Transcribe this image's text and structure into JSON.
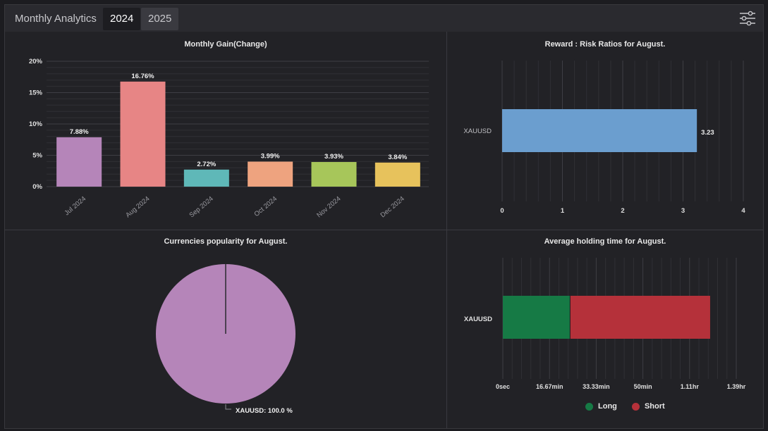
{
  "header": {
    "title": "Monthly Analytics",
    "tabs": [
      {
        "label": "2024",
        "active": true
      },
      {
        "label": "2025",
        "active": false
      }
    ],
    "settings_icon": "sliders-icon"
  },
  "chart_data": [
    {
      "type": "bar",
      "title": "Monthly Gain(Change)",
      "categories": [
        "Jul 2024",
        "Aug 2024",
        "Sep 2024",
        "Oct 2024",
        "Nov 2024",
        "Dec 2024"
      ],
      "values": [
        7.88,
        16.76,
        2.72,
        3.99,
        3.93,
        3.84
      ],
      "value_labels": [
        "7.88%",
        "16.76%",
        "2.72%",
        "3.99%",
        "3.93%",
        "3.84%"
      ],
      "colors": [
        "#b585b9",
        "#e78585",
        "#5fb8b8",
        "#eea37f",
        "#a7c65a",
        "#e7c25c"
      ],
      "ylim": [
        0,
        20
      ],
      "yticks": [
        "0%",
        "5%",
        "10%",
        "15%",
        "20%"
      ],
      "ytick_values": [
        0,
        5,
        10,
        15,
        20
      ],
      "grid": true
    },
    {
      "type": "bar",
      "orientation": "horizontal",
      "title": "Reward : Risk Ratios for August.",
      "categories": [
        "XAUUSD"
      ],
      "values": [
        3.23
      ],
      "value_labels": [
        "3.23"
      ],
      "color": "#6b9ecf",
      "xlim": [
        0,
        4
      ],
      "xticks": [
        "0",
        "1",
        "2",
        "3",
        "4"
      ],
      "xtick_values": [
        0,
        1,
        2,
        3,
        4
      ],
      "grid": true
    },
    {
      "type": "pie",
      "title": "Currencies popularity for August.",
      "slices": [
        {
          "label": "XAUUSD: 100.0 %",
          "value": 100,
          "color": "#b585b9"
        }
      ]
    },
    {
      "type": "bar",
      "orientation": "horizontal",
      "stacked": true,
      "title": "Average holding time for August.",
      "categories": [
        "XAUUSD"
      ],
      "series": [
        {
          "name": "Long",
          "values": [
            24
          ],
          "color": "#167a45"
        },
        {
          "name": "Short",
          "values": [
            50
          ],
          "color": "#b5313a"
        }
      ],
      "xlim": [
        0,
        83.33
      ],
      "xticks": [
        "0sec",
        "16.67min",
        "33.33min",
        "50min",
        "1.11hr",
        "1.39hr"
      ],
      "xtick_values": [
        0,
        16.67,
        33.33,
        50,
        66.67,
        83.33
      ],
      "legend": "bottom",
      "grid": true
    }
  ]
}
